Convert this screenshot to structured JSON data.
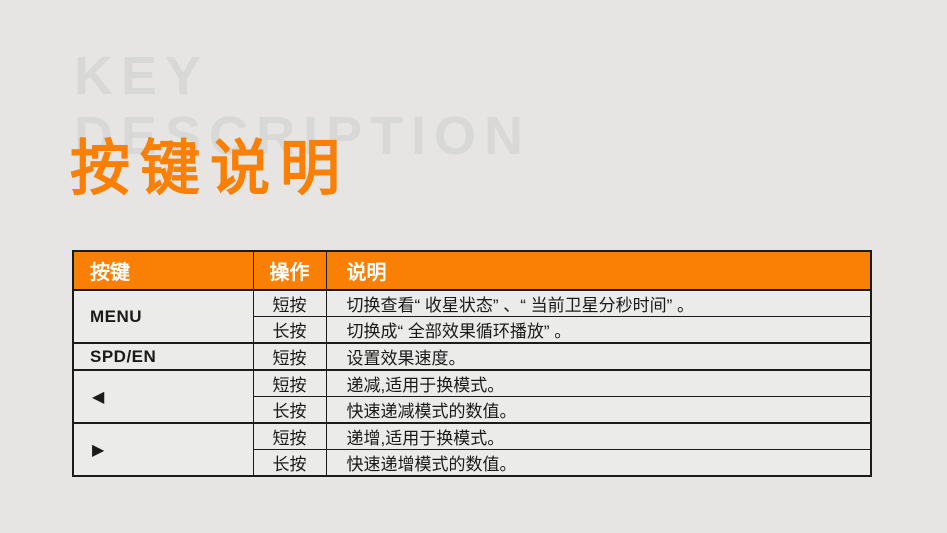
{
  "page": {
    "background_color": "#e6e5e3",
    "accent_color": "#fa8005"
  },
  "watermark": {
    "line1": "KEY",
    "line2": "DESCRIPTION"
  },
  "title": "按键说明",
  "table": {
    "headers": {
      "key": "按键",
      "action": "操作",
      "description": "说明"
    },
    "rows": [
      {
        "key": "MENU",
        "action": "短按",
        "description": "切换查看“ 收星状态” 、“ 当前卫星分秒时间” 。"
      },
      {
        "action": "长按",
        "description": "切换成“ 全部效果循环播放” 。"
      },
      {
        "key": "SPD/EN",
        "action": "短按",
        "description": "设置效果速度。"
      },
      {
        "key": "◀",
        "action": "短按",
        "description": "递减,适用于换模式。"
      },
      {
        "action": "长按",
        "description": "快速递减模式的数值。"
      },
      {
        "key": "▶",
        "action": "短按",
        "description": "递增,适用于换模式。"
      },
      {
        "action": "长按",
        "description": "快速递增模式的数值。"
      }
    ]
  }
}
